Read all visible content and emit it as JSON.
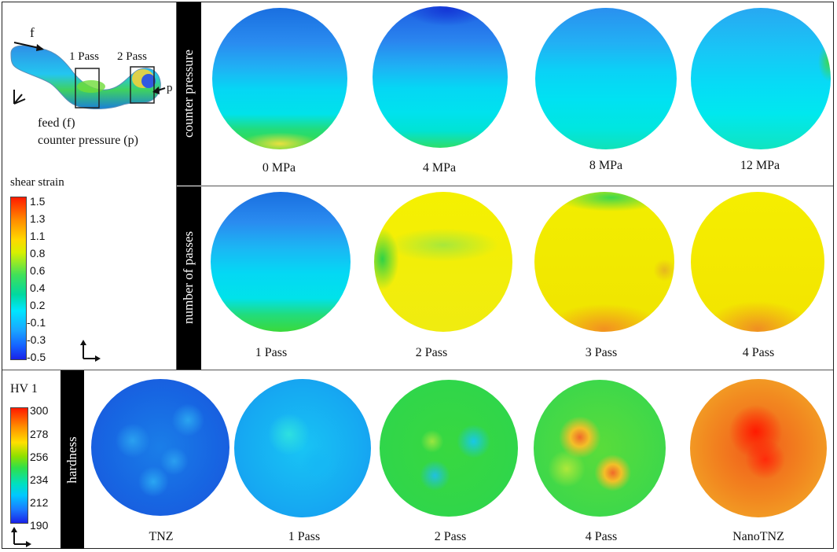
{
  "schematic": {
    "feed_arrow_label": "f",
    "pass1_label": "1 Pass",
    "pass2_label": "2 Pass",
    "pressure_arrow_label": "p",
    "feed_text": "feed (f)",
    "counter_text": "counter pressure (p)"
  },
  "shear_legend": {
    "title": "shear strain",
    "ticks": [
      "1.5",
      "1.3",
      "1.1",
      "0.8",
      "0.6",
      "0.4",
      "0.2",
      "-0.1",
      "-0.3",
      "-0.5"
    ]
  },
  "hardness_legend": {
    "title": "HV 1",
    "ticks": [
      "300",
      "278",
      "256",
      "234",
      "212",
      "190"
    ]
  },
  "rows": {
    "counter": {
      "label": "counter pressure",
      "captions": [
        "0 MPa",
        "4 MPa",
        "8 MPa",
        "12 MPa"
      ]
    },
    "passes": {
      "label": "number of passes",
      "captions": [
        "1 Pass",
        "2 Pass",
        "3 Pass",
        "4 Pass"
      ]
    },
    "hardness": {
      "label": "hardness",
      "captions": [
        "TNZ",
        "1 Pass",
        "2 Pass",
        "4 Pass",
        "NanoTNZ"
      ]
    }
  }
}
